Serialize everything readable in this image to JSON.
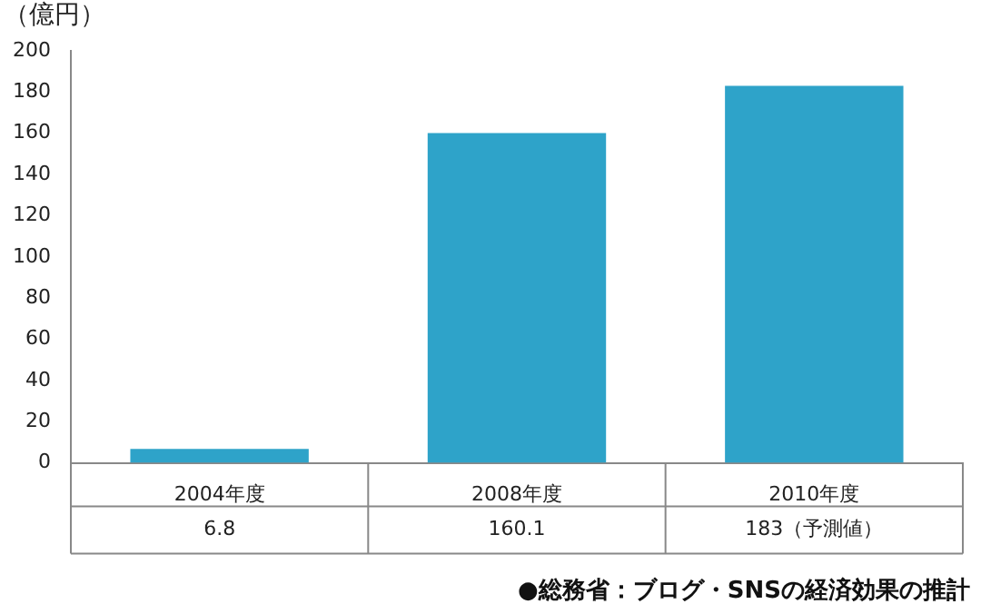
{
  "chart_data": {
    "type": "bar",
    "ylabel": "（億円）",
    "categories": [
      "2004年度",
      "2008年度",
      "2010年度"
    ],
    "values": [
      6.8,
      160.1,
      183
    ],
    "value_labels": [
      "6.8",
      "160.1",
      "183（予測値）"
    ],
    "color": "#2ea3c9",
    "ylim": [
      0,
      200
    ],
    "yticks": [
      0,
      20,
      40,
      60,
      80,
      100,
      120,
      140,
      160,
      180,
      200
    ],
    "grid": false,
    "annotations": [
      "●総務省：ブログ・SNSの経済効果の推計"
    ]
  }
}
